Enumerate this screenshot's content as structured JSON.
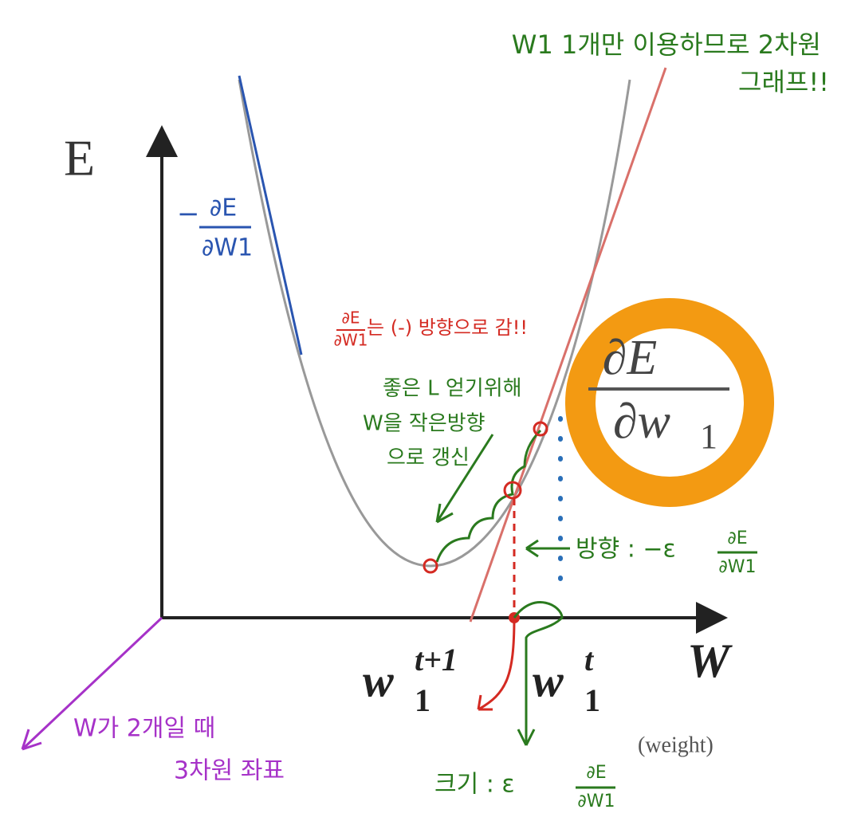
{
  "axes": {
    "y_label": "E",
    "x_label": "W",
    "x_unit": "(weight)"
  },
  "ticks": {
    "w_next": {
      "base": "w",
      "sub": "1",
      "sup": "t+1"
    },
    "w_curr": {
      "base": "w",
      "sub": "1",
      "sup": "t"
    }
  },
  "gradient_box": {
    "numerator": "∂E",
    "denominator": "∂w",
    "sub": "1"
  },
  "notes": {
    "top": [
      "W1 1개만 이용하므로 2차원",
      "그래프!!"
    ],
    "negative_gradient": {
      "sign": "−",
      "numerator": "∂E",
      "denominator": "∂W1"
    },
    "red": {
      "numerator": "∂E",
      "denominator": "∂W1",
      "text": "는 (-) 방향으로 감!!"
    },
    "green": [
      "좋은 L 얻기위해",
      "W을 작은방향",
      "으로 갱신"
    ],
    "direction": {
      "label": "방향 : −ε",
      "numerator": "∂E",
      "denominator": "∂W1"
    },
    "size": {
      "label": "크기 : ε",
      "numerator": "∂E",
      "denominator": "∂W1"
    },
    "purple": [
      "W가 2개일 때",
      "3차원 좌표"
    ]
  }
}
